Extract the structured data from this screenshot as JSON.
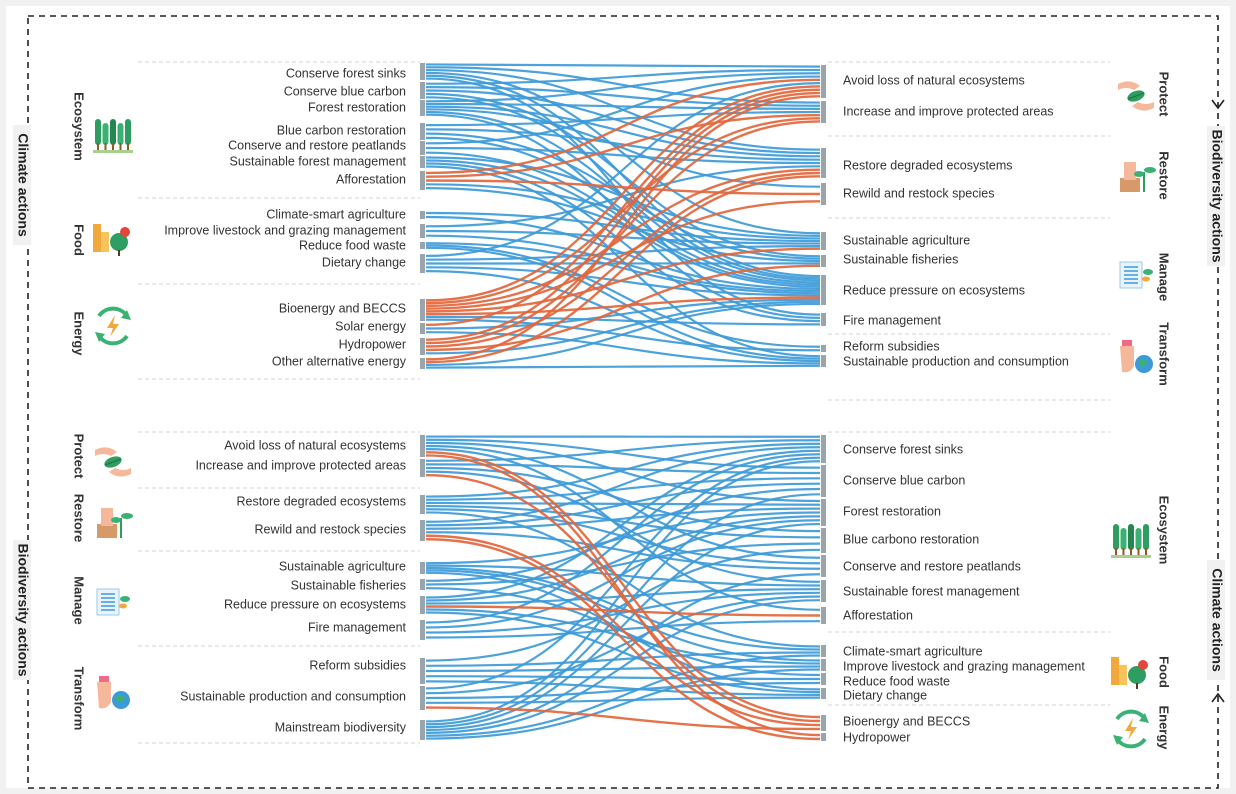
{
  "colors": {
    "synergy": "#3d9ad8",
    "conflict": "#e2663c",
    "node": "#9aa4ad",
    "frame": "#222222"
  },
  "side_titles": {
    "left_top": "Climate actions",
    "right_top": "Biodiversity actions",
    "left_bottom": "Biodiversity actions",
    "right_bottom": "Climate actions"
  },
  "top_panel": {
    "left_groups": [
      {
        "label": "Ecosystem",
        "icon": "trees-icon"
      },
      {
        "label": "Food",
        "icon": "crops-icon"
      },
      {
        "label": "Energy",
        "icon": "renewable-energy-icon"
      }
    ],
    "right_groups": [
      {
        "label": "Protect",
        "icon": "hands-leaf-icon"
      },
      {
        "label": "Restore",
        "icon": "seedling-icon"
      },
      {
        "label": "Manage",
        "icon": "clipboard-plant-icon"
      },
      {
        "label": "Transform",
        "icon": "hand-globe-icon"
      }
    ],
    "left_nodes": [
      "Conserve forest sinks",
      "Conserve blue carbon",
      "Forest restoration",
      "Blue carbon restoration",
      "Conserve and restore peatlands",
      "Sustainable forest management",
      "Afforestation",
      "Climate-smart agriculture",
      "Improve livestock and grazing management",
      "Reduce food waste",
      "Dietary change",
      "Bioenergy and BECCS",
      "Solar energy",
      "Hydropower",
      "Other alternative energy"
    ],
    "right_nodes": [
      "Avoid loss of natural ecosystems",
      "Increase and improve protected areas",
      "Restore degraded ecosystems",
      "Rewild and restock species",
      "Sustainable agriculture",
      "Sustainable fisheries",
      "Reduce pressure on ecosystems",
      "Fire management",
      "Reform subsidies",
      "Sustainable production and consumption"
    ]
  },
  "bottom_panel": {
    "left_groups": [
      {
        "label": "Protect",
        "icon": "hands-leaf-icon"
      },
      {
        "label": "Restore",
        "icon": "seedling-icon"
      },
      {
        "label": "Manage",
        "icon": "clipboard-plant-icon"
      },
      {
        "label": "Transform",
        "icon": "hand-globe-icon"
      }
    ],
    "right_groups": [
      {
        "label": "Ecosystem",
        "icon": "trees-icon"
      },
      {
        "label": "Food",
        "icon": "crops-icon"
      },
      {
        "label": "Energy",
        "icon": "renewable-energy-icon"
      }
    ],
    "left_nodes": [
      "Avoid loss of natural ecosystems",
      "Increase and improve protected areas",
      "Restore degraded ecosystems",
      "Rewild and restock species",
      "Sustainable agriculture",
      "Sustainable fisheries",
      "Reduce pressure on ecosystems",
      "Fire management",
      "Reform subsidies",
      "Sustainable production and consumption",
      "Mainstream biodiversity"
    ],
    "right_nodes": [
      "Conserve forest sinks",
      "Conserve blue carbon",
      "Forest restoration",
      "Blue carbono restoration",
      "Conserve and restore peatlands",
      "Sustainable forest management",
      "Afforestation",
      "Climate-smart agriculture",
      "Improve livestock and grazing management",
      "Reduce food waste",
      "Dietary change",
      "Bioenergy and BECCS",
      "Hydropower"
    ]
  }
}
